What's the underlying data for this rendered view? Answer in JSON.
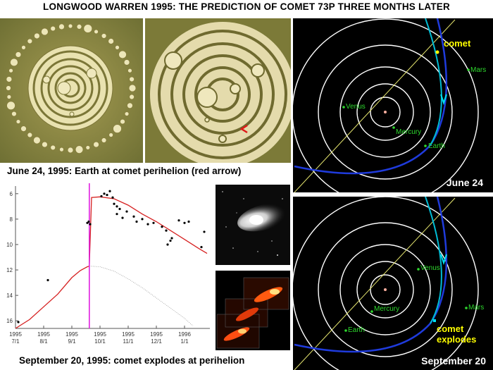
{
  "header": {
    "title": "LONGWOOD WARREN 1995: THE PREDICTION OF COMET 73P THREE MONTHS LATER"
  },
  "captions": {
    "top": "June 24, 1995: Earth at comet perihelion (red arrow)",
    "bottom": "September 20, 1995: comet explodes at perihelion"
  },
  "orbits_june": {
    "label": "June 24",
    "comet": "comet",
    "planets": [
      "Venus",
      "Mercury",
      "Earth",
      "Mars"
    ]
  },
  "orbits_sept": {
    "label": "September 20",
    "comet_line1": "comet",
    "comet_line2": "explodes",
    "planets": [
      "Venus",
      "Mercury",
      "Earth",
      "Mars"
    ]
  },
  "chart_data": {
    "type": "scatter",
    "y_ticks": [
      "6",
      "8",
      "10",
      "12",
      "14",
      "16"
    ],
    "x_ticks": [
      {
        "year": "1995",
        "date": "7/1"
      },
      {
        "year": "1995",
        "date": "8/1"
      },
      {
        "year": "1995",
        "date": "9/1"
      },
      {
        "year": "1995",
        "date": "10/1"
      },
      {
        "year": "1995",
        "date": "11/1"
      },
      {
        "year": "1995",
        "date": "12/1"
      },
      {
        "year": "1996",
        "date": "1/1"
      }
    ],
    "ylim": [
      16.6,
      5.4
    ],
    "xlim": [
      0,
      6.9
    ],
    "outburst_x": 2.62,
    "pre_curve": [
      [
        0,
        16.6
      ],
      [
        0.5,
        15.9
      ],
      [
        1,
        14.9
      ],
      [
        1.5,
        13.9
      ],
      [
        2,
        12.6
      ],
      [
        2.3,
        12.05
      ],
      [
        2.55,
        11.75
      ],
      [
        2.62,
        11.7
      ]
    ],
    "post_curve": [
      [
        2.62,
        11.7
      ],
      [
        2.7,
        6.3
      ],
      [
        3.0,
        6.25
      ],
      [
        3.5,
        6.4
      ],
      [
        4.0,
        6.9
      ],
      [
        4.5,
        7.6
      ],
      [
        5.0,
        8.2
      ],
      [
        5.5,
        8.9
      ],
      [
        6.0,
        9.6
      ],
      [
        6.5,
        10.3
      ],
      [
        6.8,
        10.7
      ]
    ],
    "predicted_curve": [
      [
        2.62,
        11.7
      ],
      [
        3.0,
        11.75
      ],
      [
        3.5,
        12.1
      ],
      [
        4.0,
        12.7
      ],
      [
        4.5,
        13.4
      ],
      [
        5.0,
        14.2
      ],
      [
        5.5,
        15.0
      ],
      [
        6.0,
        15.8
      ],
      [
        6.3,
        16.4
      ]
    ],
    "points": [
      [
        0.1,
        16.1
      ],
      [
        1.15,
        12.8
      ],
      [
        2.55,
        8.3
      ],
      [
        2.6,
        8.2
      ],
      [
        2.65,
        8.4
      ],
      [
        3.05,
        6.2
      ],
      [
        3.15,
        6.0
      ],
      [
        3.25,
        6.1
      ],
      [
        3.35,
        5.8
      ],
      [
        3.45,
        6.3
      ],
      [
        3.5,
        6.8
      ],
      [
        3.6,
        7.0
      ],
      [
        3.7,
        7.2
      ],
      [
        3.6,
        7.6
      ],
      [
        3.8,
        7.9
      ],
      [
        3.95,
        7.4
      ],
      [
        4.2,
        7.8
      ],
      [
        4.3,
        8.2
      ],
      [
        4.5,
        8.0
      ],
      [
        4.7,
        8.4
      ],
      [
        4.9,
        8.3
      ],
      [
        5.2,
        8.6
      ],
      [
        5.35,
        8.9
      ],
      [
        5.4,
        10.0
      ],
      [
        5.5,
        9.7
      ],
      [
        5.55,
        9.5
      ],
      [
        5.8,
        8.1
      ],
      [
        6.0,
        8.3
      ],
      [
        6.15,
        8.2
      ],
      [
        6.7,
        9.0
      ],
      [
        6.6,
        10.2
      ]
    ]
  },
  "colors": {
    "orbit_bg": "#000000",
    "orbit_ring": "#ffffff",
    "comet_path": "#00bcd4",
    "earth_path": "#1f3bdc",
    "planet_label": "#2dd82d",
    "comet_label": "#ffff00",
    "fit_line": "#d62020",
    "outburst_line": "#e020e0"
  }
}
